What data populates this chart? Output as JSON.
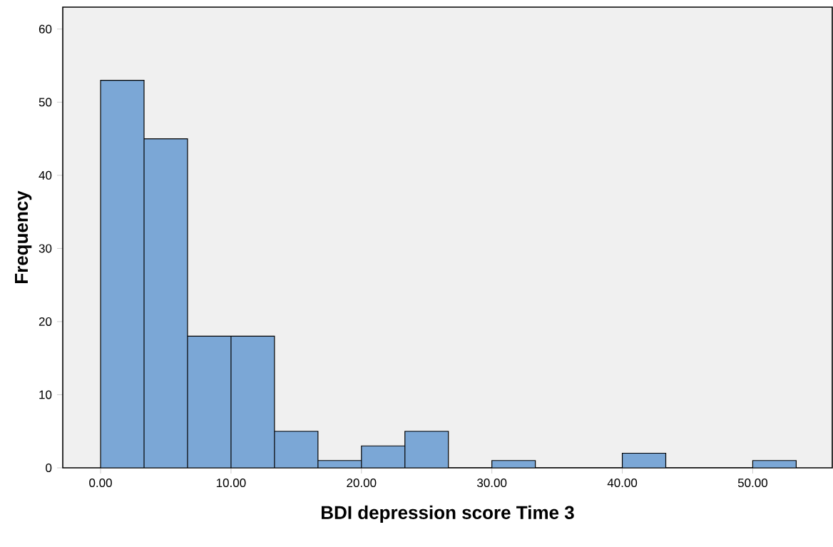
{
  "chart_data": {
    "type": "histogram",
    "xlabel": "BDI depression score Time 3",
    "ylabel": "Frequency",
    "color": "#7ba7d6",
    "bins": [
      0,
      3.333,
      6.667,
      10,
      13.333,
      16.667,
      20,
      23.333,
      26.667,
      30,
      33.333,
      36.667,
      40,
      43.333,
      46.667,
      50,
      53.333
    ],
    "values": [
      53,
      45,
      18,
      18,
      5,
      1,
      3,
      5,
      0,
      1,
      0,
      0,
      2,
      0,
      0,
      1
    ],
    "xlim": [
      -2.9,
      56.1
    ],
    "ylim": [
      0,
      63
    ],
    "xticks": [
      {
        "value": 0,
        "label": "0.00"
      },
      {
        "value": 10,
        "label": "10.00"
      },
      {
        "value": 20,
        "label": "20.00"
      },
      {
        "value": 30,
        "label": "30.00"
      },
      {
        "value": 40,
        "label": "40.00"
      },
      {
        "value": 50,
        "label": "50.00"
      }
    ],
    "yticks": [
      0,
      10,
      20,
      30,
      40,
      50,
      60
    ]
  }
}
